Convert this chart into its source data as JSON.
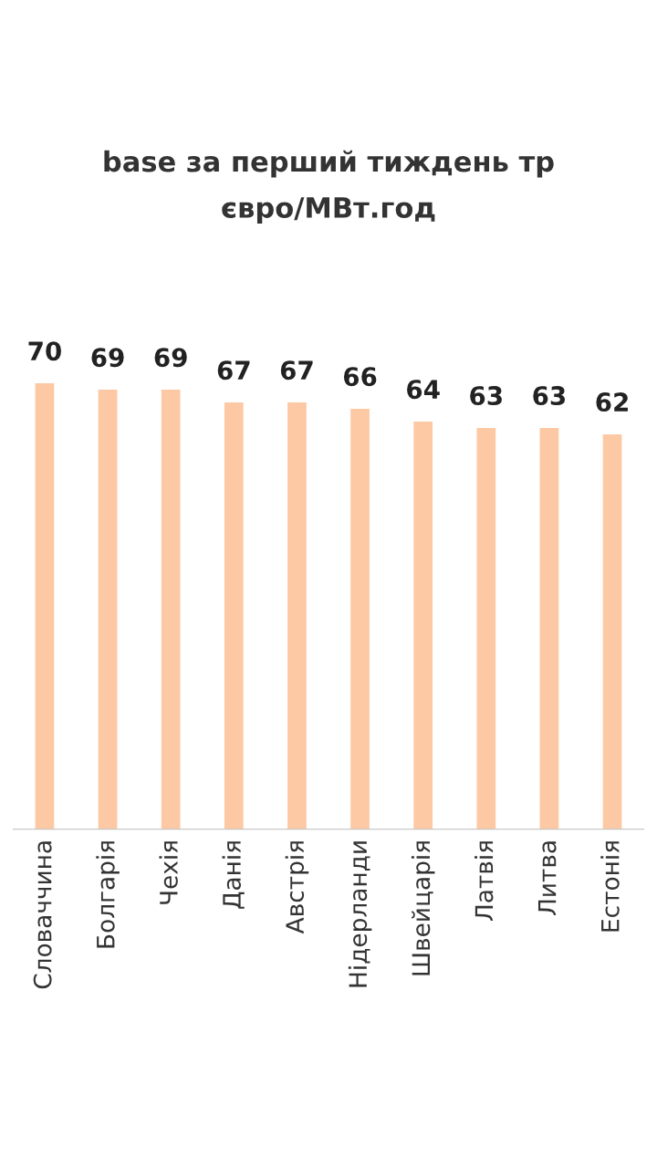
{
  "chart_data": {
    "type": "bar",
    "title": "base за перший тиждень тр\nєвро/МВт.год",
    "categories": [
      "Словаччина",
      "Болгарія",
      "Чехія",
      "Данія",
      "Австрія",
      "Нідерланди",
      "Швейцарія",
      "Латвія",
      "Литва",
      "Естонія"
    ],
    "values": [
      70,
      69,
      69,
      67,
      67,
      66,
      64,
      63,
      63,
      62
    ],
    "color": "#fcc9a4",
    "data_labels": true,
    "grid": false
  }
}
